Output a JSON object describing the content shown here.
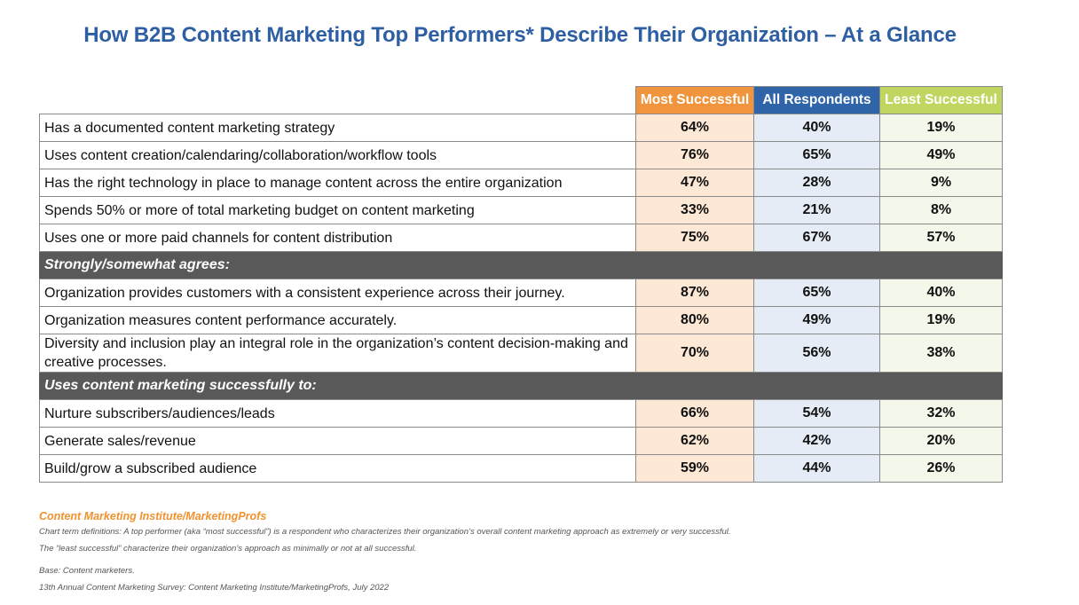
{
  "title": "How B2B Content Marketing Top Performers* Describe Their Organization – At a Glance",
  "columns": [
    {
      "label": "Most Successful",
      "color": "#f0953e",
      "cell_color": "#fce8d5"
    },
    {
      "label": "All Respondents",
      "color": "#2f64a8",
      "cell_color": "#e5ecf6"
    },
    {
      "label": "Least Successful",
      "color": "#bfd660",
      "cell_color": "#f4f8ea"
    }
  ],
  "rows": [
    {
      "label": "Has a documented content marketing strategy",
      "values": [
        "64%",
        "40%",
        "19%"
      ]
    },
    {
      "label": "Uses content creation/calendaring/collaboration/workflow tools",
      "values": [
        "76%",
        "65%",
        "49%"
      ]
    },
    {
      "label": "Has the right technology in place to manage content across the entire organization",
      "values": [
        "47%",
        "28%",
        "9%"
      ]
    },
    {
      "label": "Spends 50% or more of total marketing budget on content marketing",
      "values": [
        "33%",
        "21%",
        "8%"
      ]
    },
    {
      "label": "Uses one or more paid channels for content distribution",
      "values": [
        "75%",
        "67%",
        "57%"
      ]
    },
    {
      "section": "Strongly/somewhat agrees:"
    },
    {
      "label": "Organization provides customers with a consistent experience across their journey.",
      "values": [
        "87%",
        "65%",
        "40%"
      ]
    },
    {
      "label": "Organization measures content performance accurately.",
      "values": [
        "80%",
        "49%",
        "19%"
      ]
    },
    {
      "label": "Diversity and inclusion play an integral role in the organization’s content decision-making and creative processes.",
      "values": [
        "70%",
        "56%",
        "38%"
      ],
      "tall": true
    },
    {
      "section": "Uses content marketing successfully to:"
    },
    {
      "label": "Nurture subscribers/audiences/leads",
      "values": [
        "66%",
        "54%",
        "32%"
      ]
    },
    {
      "label": "Generate sales/revenue",
      "values": [
        "62%",
        "42%",
        "20%"
      ]
    },
    {
      "label": "Build/grow a subscribed audience",
      "values": [
        "59%",
        "44%",
        "26%"
      ]
    }
  ],
  "footer": {
    "source": "Content Marketing Institute/MarketingProfs",
    "definition1": "Chart term definitions: A top performer (aka “most successful”) is a respondent who characterizes their organization’s overall content marketing approach as extremely or very successful.",
    "definition2": "The “least successful” characterize their organization’s approach as minimally or not at all successful.",
    "base": "Base: Content marketers.",
    "survey": "13th Annual Content Marketing Survey: Content Marketing Institute/MarketingProfs, July 2022"
  }
}
